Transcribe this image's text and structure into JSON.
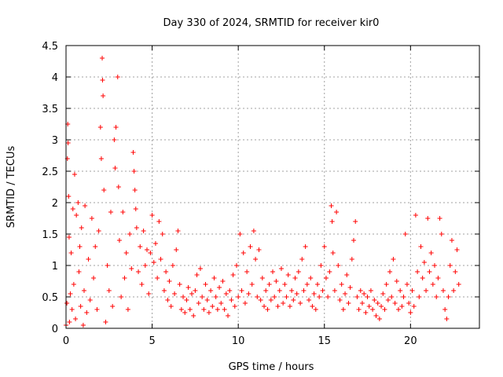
{
  "chart_data": {
    "type": "scatter",
    "title": "Day 330 of 2024, SRMTID for receiver kir0",
    "xlabel": "GPS time / hours",
    "ylabel": "SRMTID / TECUs",
    "xlim": [
      0,
      24
    ],
    "ylim": [
      0,
      4.5
    ],
    "xticks": [
      {
        "value": 0,
        "label": "0"
      },
      {
        "value": 5,
        "label": "5"
      },
      {
        "value": 10,
        "label": "10"
      },
      {
        "value": 15,
        "label": "15"
      },
      {
        "value": 20,
        "label": "20"
      }
    ],
    "yticks": [
      {
        "value": 0,
        "label": "0"
      },
      {
        "value": 0.5,
        "label": "0.5"
      },
      {
        "value": 1,
        "label": "1"
      },
      {
        "value": 1.5,
        "label": "1.5"
      },
      {
        "value": 2,
        "label": "2"
      },
      {
        "value": 2.5,
        "label": "2.5"
      },
      {
        "value": 3,
        "label": "3"
      },
      {
        "value": 3.5,
        "label": "3.5"
      },
      {
        "value": 4,
        "label": "4"
      },
      {
        "value": 4.5,
        "label": "4.5"
      }
    ],
    "grid": true,
    "marker": "+",
    "color": "#ff0000",
    "series": [
      {
        "name": "SRMTID",
        "points": [
          [
            0.0,
            0.05
          ],
          [
            0.05,
            0.4
          ],
          [
            0.08,
            2.7
          ],
          [
            0.1,
            3.25
          ],
          [
            0.12,
            2.95
          ],
          [
            0.15,
            2.1
          ],
          [
            0.18,
            1.45
          ],
          [
            0.2,
            0.1
          ],
          [
            0.25,
            0.55
          ],
          [
            0.3,
            1.2
          ],
          [
            0.35,
            0.3
          ],
          [
            0.4,
            1.9
          ],
          [
            0.45,
            0.7
          ],
          [
            0.5,
            2.45
          ],
          [
            0.55,
            0.15
          ],
          [
            0.6,
            1.8
          ],
          [
            0.7,
            2.0
          ],
          [
            0.75,
            0.9
          ],
          [
            0.8,
            1.3
          ],
          [
            0.85,
            0.35
          ],
          [
            0.9,
            1.6
          ],
          [
            1.0,
            0.05
          ],
          [
            1.05,
            0.6
          ],
          [
            1.1,
            1.95
          ],
          [
            1.2,
            0.25
          ],
          [
            1.3,
            1.1
          ],
          [
            1.4,
            0.45
          ],
          [
            1.5,
            1.75
          ],
          [
            1.6,
            0.8
          ],
          [
            1.7,
            1.3
          ],
          [
            1.8,
            0.3
          ],
          [
            1.9,
            1.55
          ],
          [
            2.0,
            3.2
          ],
          [
            2.05,
            2.7
          ],
          [
            2.1,
            4.3
          ],
          [
            2.12,
            3.95
          ],
          [
            2.15,
            3.7
          ],
          [
            2.2,
            2.2
          ],
          [
            2.3,
            0.1
          ],
          [
            2.4,
            1.0
          ],
          [
            2.5,
            0.6
          ],
          [
            2.6,
            1.85
          ],
          [
            2.7,
            0.35
          ],
          [
            2.8,
            3.0
          ],
          [
            2.85,
            2.55
          ],
          [
            2.9,
            3.2
          ],
          [
            3.0,
            4.0
          ],
          [
            3.05,
            2.25
          ],
          [
            3.1,
            1.4
          ],
          [
            3.2,
            0.5
          ],
          [
            3.3,
            1.85
          ],
          [
            3.4,
            0.8
          ],
          [
            3.5,
            1.2
          ],
          [
            3.6,
            0.3
          ],
          [
            3.7,
            1.5
          ],
          [
            3.8,
            0.95
          ],
          [
            3.9,
            2.8
          ],
          [
            3.95,
            2.5
          ],
          [
            4.0,
            2.2
          ],
          [
            4.05,
            1.9
          ],
          [
            4.1,
            1.6
          ],
          [
            4.2,
            0.9
          ],
          [
            4.3,
            1.3
          ],
          [
            4.4,
            0.7
          ],
          [
            4.5,
            1.55
          ],
          [
            4.6,
            1.0
          ],
          [
            4.7,
            1.25
          ],
          [
            4.8,
            0.55
          ],
          [
            4.9,
            1.2
          ],
          [
            5.0,
            1.8
          ],
          [
            5.1,
            1.05
          ],
          [
            5.2,
            1.35
          ],
          [
            5.3,
            0.8
          ],
          [
            5.4,
            1.7
          ],
          [
            5.5,
            1.1
          ],
          [
            5.6,
            1.5
          ],
          [
            5.7,
            0.6
          ],
          [
            5.8,
            0.9
          ],
          [
            5.9,
            0.45
          ],
          [
            6.0,
            0.75
          ],
          [
            6.1,
            0.35
          ],
          [
            6.2,
            1.0
          ],
          [
            6.3,
            0.55
          ],
          [
            6.4,
            1.25
          ],
          [
            6.5,
            1.55
          ],
          [
            6.6,
            0.7
          ],
          [
            6.7,
            0.3
          ],
          [
            6.8,
            0.5
          ],
          [
            6.9,
            0.25
          ],
          [
            7.0,
            0.45
          ],
          [
            7.1,
            0.65
          ],
          [
            7.2,
            0.3
          ],
          [
            7.3,
            0.55
          ],
          [
            7.4,
            0.2
          ],
          [
            7.5,
            0.6
          ],
          [
            7.6,
            0.85
          ],
          [
            7.7,
            0.4
          ],
          [
            7.8,
            0.95
          ],
          [
            7.9,
            0.5
          ],
          [
            8.0,
            0.3
          ],
          [
            8.1,
            0.7
          ],
          [
            8.2,
            0.45
          ],
          [
            8.3,
            0.25
          ],
          [
            8.4,
            0.6
          ],
          [
            8.5,
            0.35
          ],
          [
            8.6,
            0.8
          ],
          [
            8.7,
            0.5
          ],
          [
            8.8,
            0.3
          ],
          [
            8.9,
            0.65
          ],
          [
            9.0,
            0.4
          ],
          [
            9.1,
            0.75
          ],
          [
            9.2,
            0.3
          ],
          [
            9.3,
            0.55
          ],
          [
            9.4,
            0.2
          ],
          [
            9.5,
            0.6
          ],
          [
            9.6,
            0.45
          ],
          [
            9.7,
            0.85
          ],
          [
            9.8,
            0.35
          ],
          [
            9.9,
            1.0
          ],
          [
            10.0,
            0.5
          ],
          [
            10.1,
            1.5
          ],
          [
            10.2,
            0.6
          ],
          [
            10.3,
            1.2
          ],
          [
            10.4,
            0.4
          ],
          [
            10.5,
            0.9
          ],
          [
            10.6,
            0.55
          ],
          [
            10.7,
            1.3
          ],
          [
            10.8,
            0.7
          ],
          [
            10.9,
            1.55
          ],
          [
            11.0,
            1.1
          ],
          [
            11.1,
            0.5
          ],
          [
            11.2,
            1.25
          ],
          [
            11.3,
            0.45
          ],
          [
            11.4,
            0.8
          ],
          [
            11.5,
            0.35
          ],
          [
            11.6,
            0.6
          ],
          [
            11.7,
            0.3
          ],
          [
            11.8,
            0.7
          ],
          [
            11.9,
            0.45
          ],
          [
            12.0,
            0.9
          ],
          [
            12.1,
            0.5
          ],
          [
            12.2,
            0.75
          ],
          [
            12.3,
            0.35
          ],
          [
            12.4,
            0.6
          ],
          [
            12.5,
            0.95
          ],
          [
            12.6,
            0.4
          ],
          [
            12.7,
            0.7
          ],
          [
            12.8,
            0.5
          ],
          [
            12.9,
            0.85
          ],
          [
            13.0,
            0.35
          ],
          [
            13.1,
            0.6
          ],
          [
            13.2,
            0.45
          ],
          [
            13.3,
            0.8
          ],
          [
            13.4,
            0.55
          ],
          [
            13.5,
            0.9
          ],
          [
            13.6,
            0.4
          ],
          [
            13.7,
            1.1
          ],
          [
            13.8,
            0.6
          ],
          [
            13.9,
            1.3
          ],
          [
            14.0,
            0.7
          ],
          [
            14.1,
            0.45
          ],
          [
            14.2,
            0.8
          ],
          [
            14.3,
            0.35
          ],
          [
            14.4,
            0.55
          ],
          [
            14.5,
            0.3
          ],
          [
            14.6,
            0.7
          ],
          [
            14.7,
            0.5
          ],
          [
            14.8,
            1.0
          ],
          [
            14.9,
            0.6
          ],
          [
            15.0,
            1.3
          ],
          [
            15.1,
            0.8
          ],
          [
            15.2,
            0.5
          ],
          [
            15.3,
            0.9
          ],
          [
            15.4,
            1.95
          ],
          [
            15.45,
            1.7
          ],
          [
            15.5,
            1.2
          ],
          [
            15.6,
            0.6
          ],
          [
            15.7,
            1.85
          ],
          [
            15.8,
            1.0
          ],
          [
            15.9,
            0.45
          ],
          [
            16.0,
            0.7
          ],
          [
            16.1,
            0.3
          ],
          [
            16.2,
            0.55
          ],
          [
            16.3,
            0.85
          ],
          [
            16.4,
            0.4
          ],
          [
            16.5,
            0.65
          ],
          [
            16.6,
            1.1
          ],
          [
            16.7,
            1.4
          ],
          [
            16.8,
            1.7
          ],
          [
            16.9,
            0.5
          ],
          [
            17.0,
            0.3
          ],
          [
            17.1,
            0.6
          ],
          [
            17.2,
            0.4
          ],
          [
            17.3,
            0.55
          ],
          [
            17.4,
            0.25
          ],
          [
            17.5,
            0.5
          ],
          [
            17.6,
            0.35
          ],
          [
            17.7,
            0.6
          ],
          [
            17.8,
            0.3
          ],
          [
            17.9,
            0.45
          ],
          [
            18.0,
            0.2
          ],
          [
            18.1,
            0.4
          ],
          [
            18.2,
            0.15
          ],
          [
            18.3,
            0.35
          ],
          [
            18.4,
            0.55
          ],
          [
            18.5,
            0.3
          ],
          [
            18.6,
            0.7
          ],
          [
            18.7,
            0.45
          ],
          [
            18.8,
            0.9
          ],
          [
            18.9,
            0.5
          ],
          [
            19.0,
            1.1
          ],
          [
            19.1,
            0.4
          ],
          [
            19.2,
            0.75
          ],
          [
            19.3,
            0.3
          ],
          [
            19.4,
            0.6
          ],
          [
            19.5,
            0.35
          ],
          [
            19.6,
            0.5
          ],
          [
            19.7,
            1.5
          ],
          [
            19.8,
            0.7
          ],
          [
            19.9,
            0.4
          ],
          [
            20.0,
            0.25
          ],
          [
            20.1,
            0.6
          ],
          [
            20.2,
            0.35
          ],
          [
            20.3,
            1.8
          ],
          [
            20.4,
            0.9
          ],
          [
            20.5,
            0.5
          ],
          [
            20.6,
            1.3
          ],
          [
            20.7,
            0.8
          ],
          [
            20.8,
            1.05
          ],
          [
            20.9,
            0.6
          ],
          [
            21.0,
            1.75
          ],
          [
            21.1,
            0.9
          ],
          [
            21.2,
            1.2
          ],
          [
            21.3,
            0.7
          ],
          [
            21.4,
            1.0
          ],
          [
            21.5,
            0.5
          ],
          [
            21.6,
            0.8
          ],
          [
            21.7,
            1.75
          ],
          [
            21.8,
            1.5
          ],
          [
            21.9,
            0.6
          ],
          [
            22.0,
            0.3
          ],
          [
            22.1,
            0.15
          ],
          [
            22.2,
            0.5
          ],
          [
            22.3,
            1.0
          ],
          [
            22.4,
            1.4
          ],
          [
            22.5,
            0.6
          ],
          [
            22.6,
            0.9
          ],
          [
            22.7,
            1.25
          ],
          [
            22.8,
            0.7
          ]
        ]
      }
    ]
  }
}
